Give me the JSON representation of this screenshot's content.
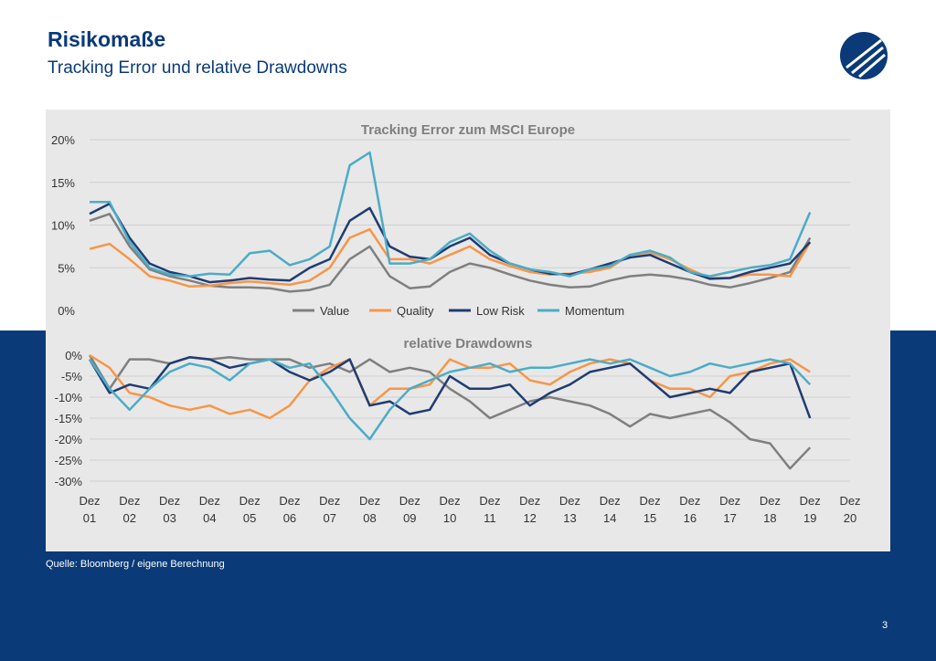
{
  "header": {
    "title": "Risikomaße",
    "subtitle": "Tracking Error und relative Drawdowns"
  },
  "footer": {
    "source": "Quelle: Bloomberg / eigene Berechnung",
    "page_number": "3"
  },
  "colors": {
    "navy": "#0a3a78",
    "panel_bg": "#e8e8e8",
    "Value": "#7f7f7f",
    "Quality": "#f79646",
    "Low Risk": "#1f3c73",
    "Momentum": "#4bacc6"
  },
  "logo_icon": "stylized-sail-logo-icon",
  "chart_data": [
    {
      "type": "line",
      "title": "Tracking Error zum MSCI Europe",
      "x": [
        2002.0,
        2002.5,
        2003.0,
        2003.5,
        2004.0,
        2004.5,
        2005.0,
        2005.5,
        2006.0,
        2006.5,
        2007.0,
        2007.5,
        2008.0,
        2008.5,
        2009.0,
        2009.5,
        2010.0,
        2010.5,
        2011.0,
        2011.5,
        2012.0,
        2012.5,
        2013.0,
        2013.5,
        2014.0,
        2014.5,
        2015.0,
        2015.5,
        2016.0,
        2016.5,
        2017.0,
        2017.5,
        2018.0,
        2018.5,
        2019.0,
        2019.5,
        2020.0
      ],
      "yticks": [
        "20%",
        "15%",
        "10%",
        "5%",
        "0%"
      ],
      "ylim": [
        0,
        20
      ],
      "legend": [
        "Value",
        "Quality",
        "Low Risk",
        "Momentum"
      ],
      "legend_position": "bottom",
      "grid": true,
      "series": [
        {
          "name": "Value",
          "values": [
            10.5,
            11.3,
            7.5,
            4.8,
            4.0,
            3.5,
            2.9,
            2.7,
            2.7,
            2.6,
            2.2,
            2.4,
            3.0,
            6.0,
            7.5,
            4.0,
            2.6,
            2.8,
            4.5,
            5.5,
            5.0,
            4.2,
            3.5,
            3.0,
            2.7,
            2.8,
            3.5,
            4.0,
            4.2,
            4.0,
            3.6,
            3.0,
            2.7,
            3.2,
            3.8,
            4.5,
            8.5
          ]
        },
        {
          "name": "Quality",
          "values": [
            7.2,
            7.8,
            6.0,
            4.0,
            3.5,
            2.8,
            2.9,
            3.2,
            3.4,
            3.2,
            3.0,
            3.5,
            5.0,
            8.5,
            9.5,
            6.0,
            6.0,
            5.5,
            6.5,
            7.5,
            6.0,
            5.2,
            4.5,
            4.2,
            4.3,
            4.5,
            5.0,
            6.5,
            6.8,
            6.0,
            4.8,
            3.8,
            3.8,
            4.2,
            4.2,
            4.0,
            8.0
          ]
        },
        {
          "name": "Low Risk",
          "values": [
            11.3,
            12.5,
            8.5,
            5.5,
            4.5,
            4.0,
            3.3,
            3.5,
            3.8,
            3.6,
            3.5,
            5.0,
            6.0,
            10.5,
            12.0,
            7.5,
            6.3,
            6.0,
            7.5,
            8.5,
            6.5,
            5.5,
            4.8,
            4.3,
            4.2,
            4.8,
            5.5,
            6.2,
            6.5,
            5.5,
            4.5,
            3.7,
            3.8,
            4.5,
            5.0,
            5.5,
            8.0
          ]
        },
        {
          "name": "Momentum",
          "values": [
            12.7,
            12.7,
            8.0,
            5.0,
            4.2,
            4.0,
            4.3,
            4.2,
            6.7,
            7.0,
            5.3,
            6.0,
            7.5,
            17.0,
            18.5,
            5.5,
            5.5,
            6.0,
            8.0,
            9.0,
            7.0,
            5.5,
            4.8,
            4.5,
            4.0,
            4.8,
            5.2,
            6.5,
            7.0,
            6.2,
            4.5,
            4.0,
            4.5,
            5.0,
            5.3,
            6.0,
            11.5
          ]
        }
      ]
    },
    {
      "type": "line",
      "title": "relative Drawdowns",
      "x": [
        2002.0,
        2002.5,
        2003.0,
        2003.5,
        2004.0,
        2004.5,
        2005.0,
        2005.5,
        2006.0,
        2006.5,
        2007.0,
        2007.5,
        2008.0,
        2008.5,
        2009.0,
        2009.5,
        2010.0,
        2010.5,
        2011.0,
        2011.5,
        2012.0,
        2012.5,
        2013.0,
        2013.5,
        2014.0,
        2014.5,
        2015.0,
        2015.5,
        2016.0,
        2016.5,
        2017.0,
        2017.5,
        2018.0,
        2018.5,
        2019.0,
        2019.5,
        2020.0
      ],
      "yticks": [
        "0%",
        "-5%",
        "-10%",
        "-15%",
        "-20%",
        "-25%",
        "-30%"
      ],
      "ylim": [
        -30,
        0
      ],
      "xticks_top": [
        "Dez",
        "Dez",
        "Dez",
        "Dez",
        "Dez",
        "Dez",
        "Dez",
        "Dez",
        "Dez",
        "Dez",
        "Dez",
        "Dez",
        "Dez",
        "Dez",
        "Dez",
        "Dez",
        "Dez",
        "Dez",
        "Dez",
        "Dez"
      ],
      "xticks_bottom": [
        "01",
        "02",
        "03",
        "04",
        "05",
        "06",
        "07",
        "08",
        "09",
        "10",
        "11",
        "12",
        "13",
        "14",
        "15",
        "16",
        "17",
        "18",
        "19",
        "20"
      ],
      "grid": true,
      "series": [
        {
          "name": "Value",
          "values": [
            0,
            -8,
            -1,
            -1,
            -2,
            -0.5,
            -1,
            -0.5,
            -1,
            -1,
            -1,
            -3,
            -2,
            -4,
            -1,
            -4,
            -3,
            -4,
            -8,
            -11,
            -15,
            -13,
            -11,
            -10,
            -11,
            -12,
            -14,
            -17,
            -14,
            -15,
            -14,
            -13,
            -16,
            -20,
            -21,
            -27,
            -22
          ]
        },
        {
          "name": "Quality",
          "values": [
            0,
            -3,
            -9,
            -10,
            -12,
            -13,
            -12,
            -14,
            -13,
            -15,
            -12,
            -6,
            -3,
            -1,
            -12,
            -8,
            -8,
            -7,
            -1,
            -3,
            -3,
            -2,
            -6,
            -7,
            -4,
            -2,
            -1,
            -2,
            -6,
            -8,
            -8,
            -10,
            -5,
            -4,
            -2,
            -1,
            -4
          ]
        },
        {
          "name": "Low Risk",
          "values": [
            -1,
            -9,
            -7,
            -8,
            -2,
            -0.5,
            -1,
            -3,
            -2,
            -1,
            -4,
            -6,
            -4,
            -1,
            -12,
            -11,
            -14,
            -13,
            -5,
            -8,
            -8,
            -7,
            -12,
            -9,
            -7,
            -4,
            -3,
            -2,
            -6,
            -10,
            -9,
            -8,
            -9,
            -4,
            -3,
            -2,
            -15
          ]
        },
        {
          "name": "Momentum",
          "values": [
            -1,
            -8,
            -13,
            -8,
            -4,
            -2,
            -3,
            -6,
            -2,
            -1,
            -3,
            -2,
            -8,
            -15,
            -20,
            -13,
            -8,
            -6,
            -4,
            -3,
            -2,
            -4,
            -3,
            -3,
            -2,
            -1,
            -2,
            -1,
            -3,
            -5,
            -4,
            -2,
            -3,
            -2,
            -1,
            -2,
            -7
          ]
        }
      ]
    }
  ]
}
